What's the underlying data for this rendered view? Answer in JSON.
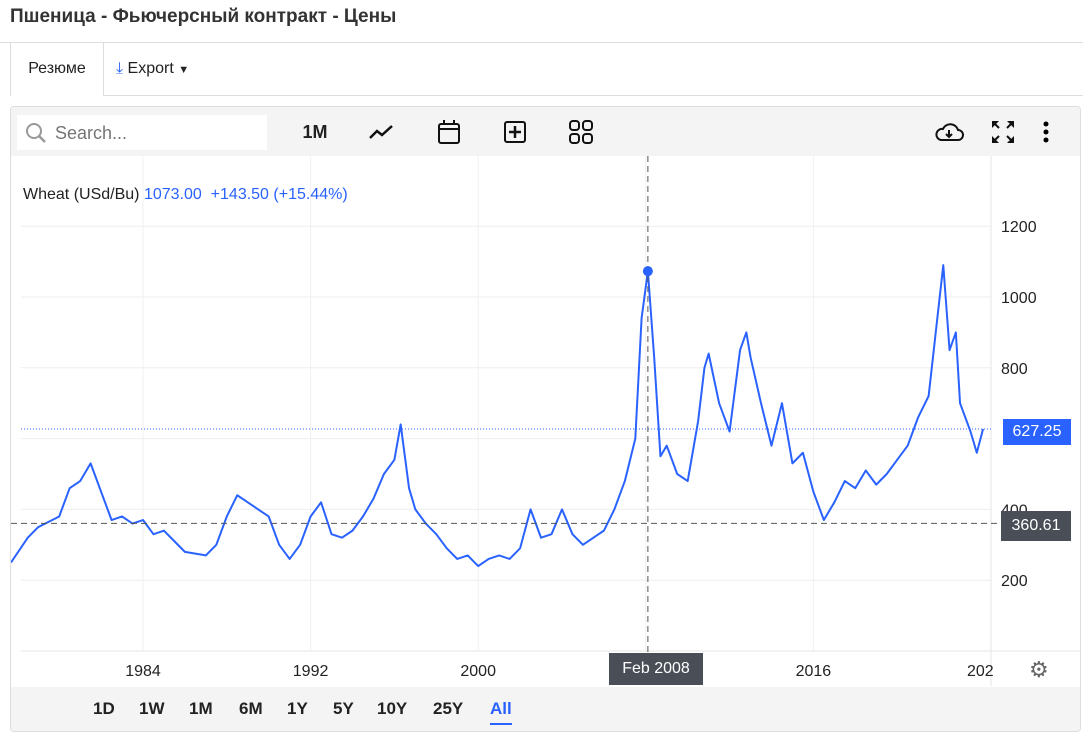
{
  "page": {
    "title": "Пшеница - Фьючерсный контракт - Цены"
  },
  "tabs": [
    {
      "label": "Резюме"
    },
    {
      "label": "Export"
    }
  ],
  "toolbar": {
    "search_placeholder": "Search...",
    "interval": "1M",
    "icons": [
      "search-icon",
      "line-chart-icon",
      "calendar-icon",
      "plus-square-icon",
      "grid-icon",
      "cloud-download-icon",
      "fullscreen-icon",
      "more-vertical-icon"
    ]
  },
  "legend": {
    "name": "Wheat (USd/Bu)",
    "value": "1073.00",
    "change": "+143.50",
    "change_pct": "(+15.44%)"
  },
  "crosshair": {
    "date_label": "Feb 2008",
    "price_label": "360.61",
    "price": 360.61,
    "date": 2008.1
  },
  "last_price": {
    "label": "627.25",
    "value": 627.25
  },
  "ranges": [
    "1D",
    "1W",
    "1M",
    "6M",
    "1Y",
    "5Y",
    "10Y",
    "25Y",
    "All"
  ],
  "selected_range": "All",
  "colors": {
    "line": "#2962ff",
    "crosshair_label": "#4a4e57"
  },
  "chart_data": {
    "type": "line",
    "x_ticks": [
      "1984",
      "1992",
      "2000",
      "2008",
      "2016",
      "202"
    ],
    "y_ticks": [
      200,
      400,
      800,
      1000,
      1200
    ],
    "ylim": [
      0,
      1400
    ],
    "xlim": [
      1977.7,
      2025
    ],
    "series": [
      {
        "name": "Wheat (USd/Bu)",
        "x": [
          1977.7,
          1978.5,
          1979,
          1980,
          1980.5,
          1981,
          1981.5,
          1982,
          1982.5,
          1983,
          1983.5,
          1984,
          1984.5,
          1985,
          1985.5,
          1986,
          1987,
          1987.5,
          1988,
          1988.5,
          1989,
          1989.5,
          1990,
          1990.5,
          1991,
          1991.5,
          1992,
          1992.5,
          1993,
          1993.5,
          1994,
          1994.5,
          1995,
          1995.5,
          1996,
          1996.3,
          1996.7,
          1997,
          1997.5,
          1998,
          1998.5,
          1999,
          1999.5,
          2000,
          2000.5,
          2001,
          2001.5,
          2002,
          2002.5,
          2003,
          2003.5,
          2004,
          2004.5,
          2005,
          2005.5,
          2006,
          2006.5,
          2007,
          2007.5,
          2007.8,
          2008.1,
          2008.4,
          2008.7,
          2009,
          2009.5,
          2010,
          2010.5,
          2010.8,
          2011,
          2011.5,
          2012,
          2012.5,
          2012.8,
          2013,
          2013.5,
          2014,
          2014.5,
          2015,
          2015.5,
          2016,
          2016.5,
          2017,
          2017.5,
          2018,
          2018.5,
          2019,
          2019.5,
          2020,
          2020.5,
          2021,
          2021.5,
          2022.2,
          2022.5,
          2022.8,
          2023,
          2023.5,
          2023.8,
          2024.1
        ],
        "y": [
          250,
          320,
          350,
          380,
          460,
          480,
          530,
          450,
          370,
          380,
          360,
          370,
          330,
          340,
          310,
          280,
          270,
          300,
          380,
          440,
          420,
          400,
          380,
          300,
          260,
          300,
          380,
          420,
          330,
          320,
          340,
          380,
          430,
          500,
          540,
          640,
          460,
          400,
          360,
          330,
          290,
          260,
          270,
          240,
          260,
          270,
          260,
          290,
          400,
          320,
          330,
          400,
          330,
          300,
          320,
          340,
          400,
          480,
          600,
          940,
          1073,
          830,
          550,
          580,
          500,
          480,
          650,
          800,
          840,
          700,
          620,
          850,
          900,
          830,
          700,
          580,
          700,
          530,
          560,
          450,
          370,
          420,
          480,
          460,
          510,
          470,
          500,
          540,
          580,
          660,
          720,
          1090,
          850,
          900,
          700,
          620,
          560,
          627
        ]
      }
    ]
  }
}
